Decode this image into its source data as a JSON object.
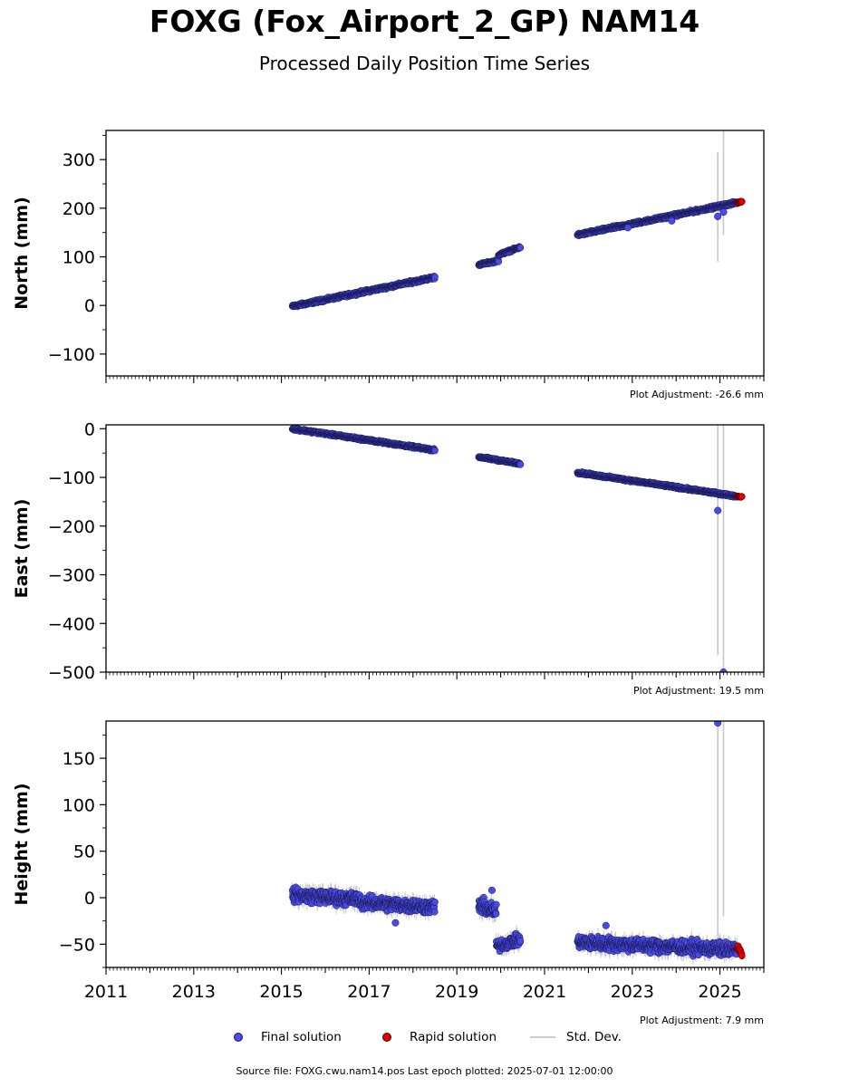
{
  "title": "FOXG (Fox_Airport_2_GP) NAM14",
  "subtitle": "Processed Daily Position Time Series",
  "source_text": "Source file: FOXG.cwu.nam14.pos  Last epoch plotted: 2025-07-01 12:00:00",
  "legend": {
    "final": "Final solution",
    "rapid": "Rapid solution",
    "std": "Std. Dev."
  },
  "colors": {
    "final": "#4a4ae8",
    "final_edge": "#1a1a55",
    "rapid": "#e00000",
    "std": "#c8c8c8"
  },
  "chart_data": [
    {
      "type": "scatter",
      "ylabel": "North (mm)",
      "ylim": [
        -145,
        360
      ],
      "xlim": [
        2011,
        2026
      ],
      "yticks": [
        -100,
        0,
        100,
        200,
        300
      ],
      "ytick_labels": [
        "−100",
        "0",
        "100",
        "200",
        "300"
      ],
      "xtick_labels_shown": false,
      "adjustment": "Plot Adjustment: -26.6 mm",
      "segments": [
        {
          "x0": 2015.25,
          "x1": 2018.5,
          "y0": -2,
          "y1": 58,
          "noise": 2.5
        },
        {
          "x0": 2019.5,
          "x1": 2019.95,
          "y0": 84,
          "y1": 92,
          "noise": 2
        },
        {
          "x0": 2019.95,
          "x1": 2020.45,
          "y0": 104,
          "y1": 120,
          "noise": 2
        },
        {
          "x0": 2021.75,
          "x1": 2025.4,
          "y0": 145,
          "y1": 212,
          "noise": 2.5
        }
      ],
      "outliers": [
        [
          2024.95,
          183
        ],
        [
          2025.08,
          192
        ],
        [
          2023.9,
          174
        ],
        [
          2022.9,
          160
        ]
      ],
      "rapid": {
        "x0": 2025.4,
        "x1": 2025.5,
        "y0": 211,
        "y1": 214
      },
      "std_bars": [
        [
          2024.95,
          90,
          315
        ],
        [
          2025.08,
          145,
          360
        ]
      ]
    },
    {
      "type": "scatter",
      "ylabel": "East (mm)",
      "ylim": [
        -500,
        8
      ],
      "xlim": [
        2011,
        2026
      ],
      "yticks": [
        -500,
        -400,
        -300,
        -200,
        -100,
        0
      ],
      "ytick_labels": [
        "−500",
        "−400",
        "−300",
        "−200",
        "−100",
        "0"
      ],
      "xtick_labels_shown": false,
      "adjustment": "Plot Adjustment: 19.5 mm",
      "segments": [
        {
          "x0": 2015.25,
          "x1": 2018.5,
          "y0": 0,
          "y1": -44,
          "noise": 2
        },
        {
          "x0": 2019.5,
          "x1": 2020.45,
          "y0": -58,
          "y1": -72,
          "noise": 1.8
        },
        {
          "x0": 2021.75,
          "x1": 2025.4,
          "y0": -90,
          "y1": -139,
          "noise": 2
        }
      ],
      "outliers": [
        [
          2024.95,
          -168
        ],
        [
          2025.08,
          -500
        ]
      ],
      "rapid": {
        "x0": 2025.4,
        "x1": 2025.5,
        "y0": -139,
        "y1": -140
      },
      "std_bars": [
        [
          2024.95,
          -465,
          8
        ],
        [
          2025.08,
          -500,
          8
        ]
      ]
    },
    {
      "type": "scatter",
      "ylabel": "Height (mm)",
      "ylim": [
        -75,
        190
      ],
      "xlim": [
        2011,
        2026
      ],
      "xticks": [
        2011,
        2013,
        2015,
        2017,
        2019,
        2021,
        2023,
        2025
      ],
      "xtick_labels": [
        "2011",
        "2013",
        "2015",
        "2017",
        "2019",
        "2021",
        "2023",
        "2025"
      ],
      "yticks": [
        -50,
        0,
        50,
        100,
        150
      ],
      "ytick_labels": [
        "−50",
        "0",
        "50",
        "100",
        "150"
      ],
      "xtick_labels_shown": true,
      "adjustment": "Plot Adjustment: 7.9 mm",
      "segments": [
        {
          "x0": 2015.25,
          "x1": 2016.8,
          "y0": 3,
          "y1": -2,
          "noise": 6
        },
        {
          "x0": 2016.8,
          "x1": 2018.5,
          "y0": -5,
          "y1": -10,
          "noise": 6
        },
        {
          "x0": 2019.5,
          "x1": 2019.9,
          "y0": -8,
          "y1": -15,
          "noise": 7
        },
        {
          "x0": 2019.9,
          "x1": 2020.45,
          "y0": -52,
          "y1": -45,
          "noise": 5
        },
        {
          "x0": 2021.75,
          "x1": 2025.4,
          "y0": -48,
          "y1": -56,
          "noise": 6
        }
      ],
      "outliers": [
        [
          2024.95,
          188
        ],
        [
          2017.6,
          -27
        ],
        [
          2022.4,
          -30
        ],
        [
          2019.8,
          8
        ]
      ],
      "rapid": {
        "x0": 2025.4,
        "x1": 2025.5,
        "y0": -53,
        "y1": -60
      },
      "std_bars": [
        [
          2024.95,
          -50,
          190
        ],
        [
          2025.08,
          -20,
          190
        ]
      ]
    }
  ]
}
